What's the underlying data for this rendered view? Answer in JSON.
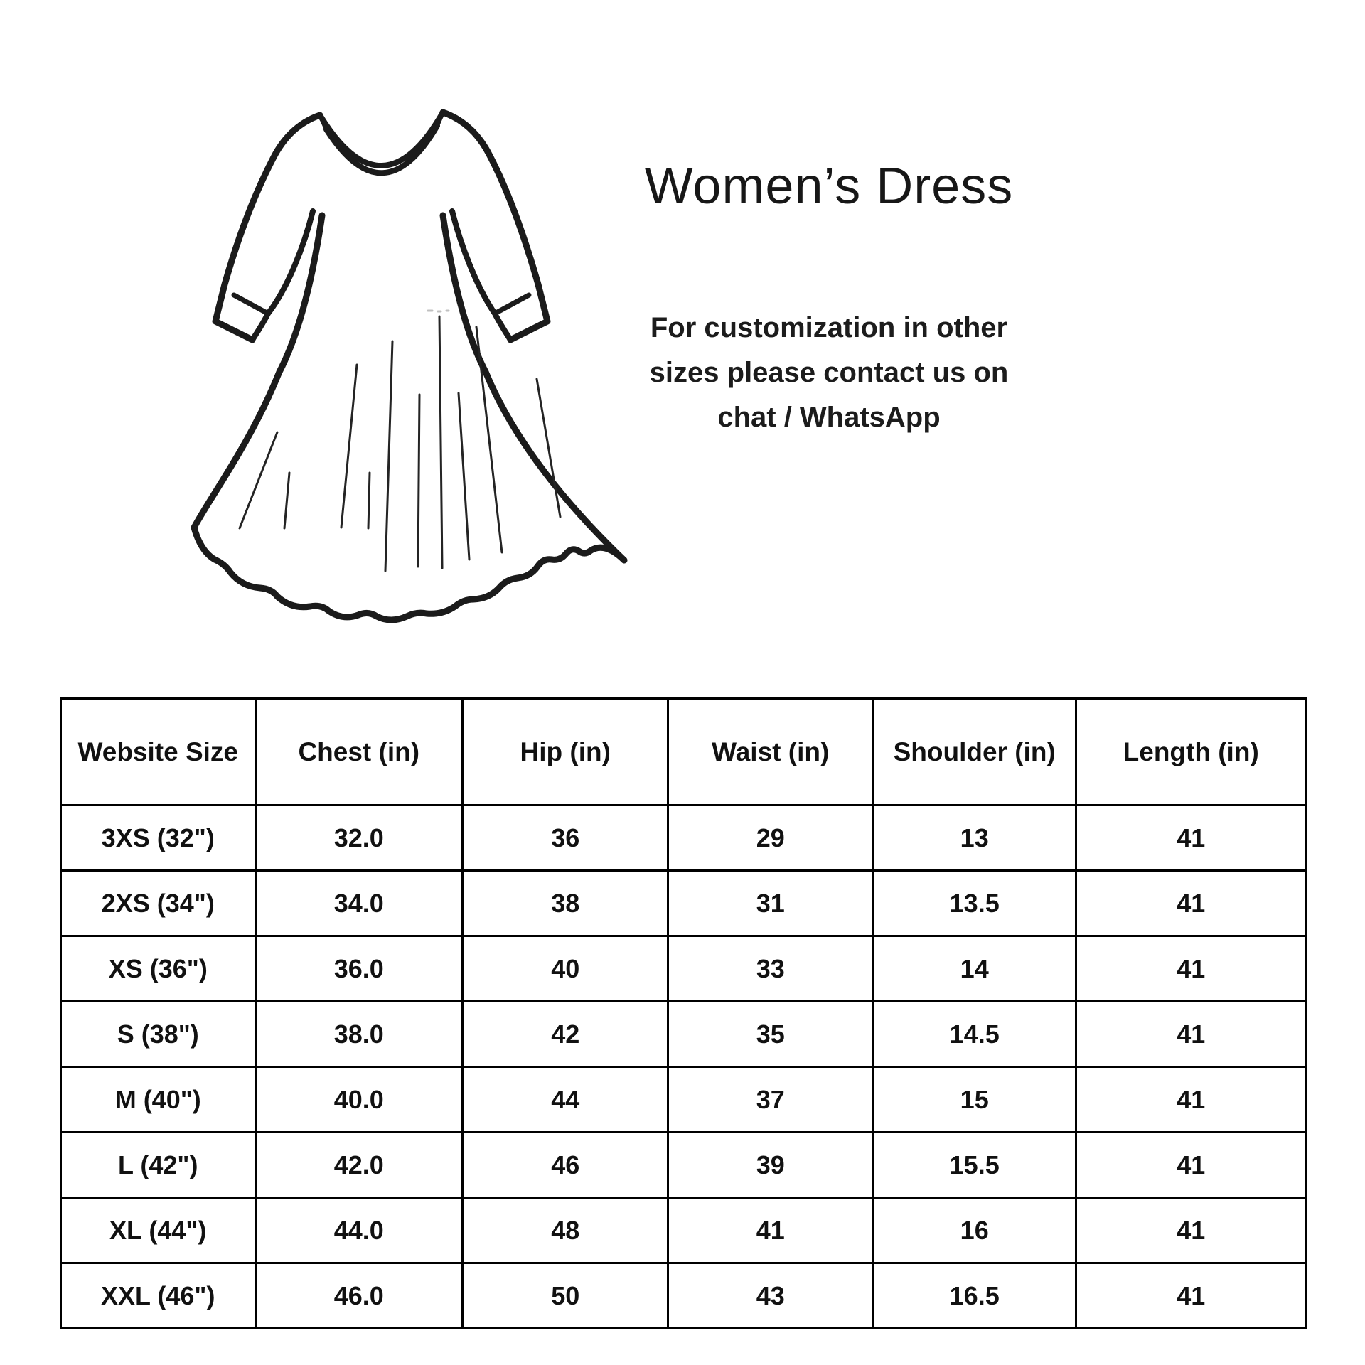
{
  "product": {
    "title": "Women’s Dress",
    "note_lines": [
      "For customization in other",
      "sizes please contact us on",
      "chat / WhatsApp"
    ]
  },
  "illustration": {
    "icon": "dress-line-art",
    "description": "outline drawing of a long-sleeve flared dress"
  },
  "size_chart": {
    "columns": [
      "Website Size",
      "Chest (in)",
      "Hip (in)",
      "Waist (in)",
      "Shoulder (in)",
      "Length (in)"
    ],
    "rows": [
      [
        "3XS (32\")",
        "32.0",
        "36",
        "29",
        "13",
        "41"
      ],
      [
        "2XS (34\")",
        "34.0",
        "38",
        "31",
        "13.5",
        "41"
      ],
      [
        "XS (36\")",
        "36.0",
        "40",
        "33",
        "14",
        "41"
      ],
      [
        "S (38\")",
        "38.0",
        "42",
        "35",
        "14.5",
        "41"
      ],
      [
        "M (40\")",
        "40.0",
        "44",
        "37",
        "15",
        "41"
      ],
      [
        "L (42\")",
        "42.0",
        "46",
        "39",
        "15.5",
        "41"
      ],
      [
        "XL (44\")",
        "44.0",
        "48",
        "41",
        "16",
        "41"
      ],
      [
        "XXL (46\")",
        "46.0",
        "50",
        "43",
        "16.5",
        "41"
      ]
    ]
  },
  "colors": {
    "background": "#ffffff",
    "ink": "#1b1b1b",
    "table_border": "#000000",
    "text": "#141414"
  }
}
